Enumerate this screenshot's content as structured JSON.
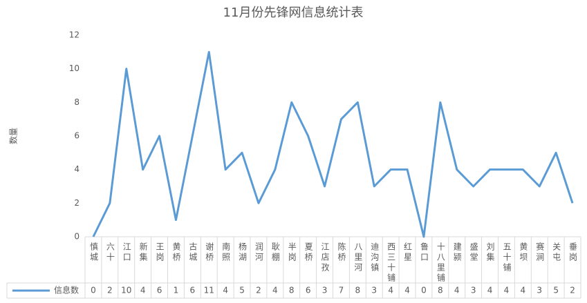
{
  "chart_data": {
    "type": "line",
    "title": "11月份先锋网信息统计表",
    "y_label": "数量",
    "categories": [
      "慎城",
      "六十",
      "江口",
      "新集",
      "王岗",
      "黄桥",
      "古城",
      "谢桥",
      "南照",
      "杨湖",
      "润河",
      "耿棚",
      "半岗",
      "夏桥",
      "江店孜",
      "陈桥",
      "八里河",
      "迪沟镇",
      "西三十铺",
      "红星",
      "鲁口",
      "十八里铺",
      "建颍",
      "盛堂",
      "刘集",
      "五十铺",
      "黄坝",
      "赛涧",
      "关屯",
      "垂岗"
    ],
    "series": [
      {
        "name": "信息数",
        "color": "#5b9bd5",
        "values": [
          0,
          2,
          10,
          4,
          6,
          1,
          6,
          11,
          4,
          5,
          2,
          4,
          8,
          6,
          3,
          7,
          8,
          3,
          4,
          4,
          0,
          8,
          4,
          3,
          4,
          4,
          4,
          3,
          5,
          2
        ]
      }
    ],
    "ylim": [
      0,
      12
    ],
    "yticks": [
      0,
      2,
      4,
      6,
      8,
      10,
      12
    ],
    "grid": false
  }
}
